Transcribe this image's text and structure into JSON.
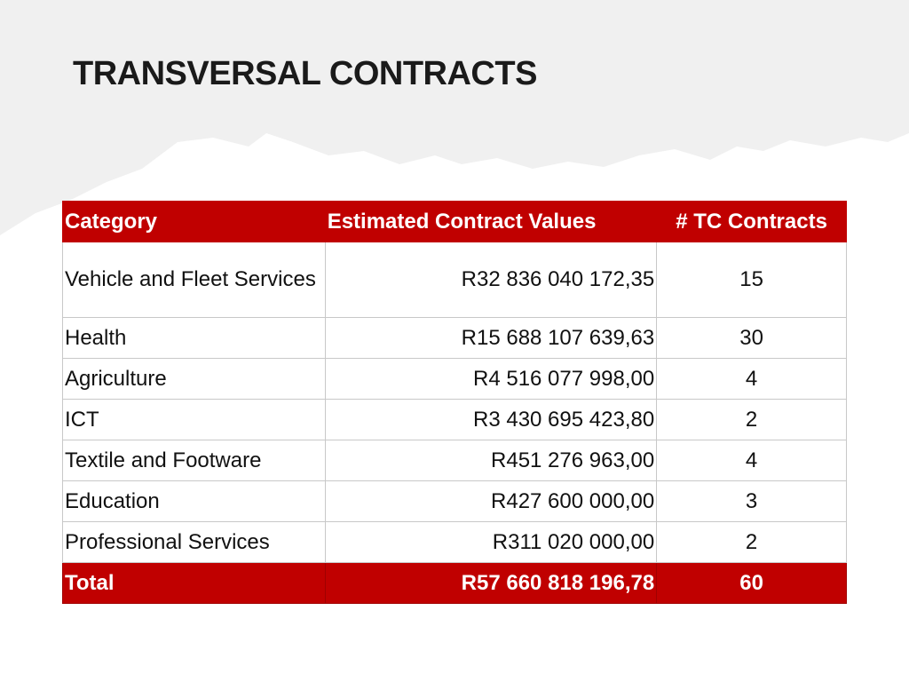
{
  "header": {
    "title": "TRANSVERSAL CONTRACTS"
  },
  "table": {
    "columns": [
      "Category",
      "Estimated Contract Values",
      "# TC Contracts"
    ],
    "rows": [
      [
        "Vehicle and Fleet Services",
        "R32 836 040 172,35",
        "15"
      ],
      [
        "Health",
        "R15 688 107 639,63",
        "30"
      ],
      [
        "Agriculture",
        "R4 516 077 998,00",
        "4"
      ],
      [
        "ICT",
        "R3 430 695 423,80",
        "2"
      ],
      [
        "Textile and Footware",
        "R451 276 963,00",
        "4"
      ],
      [
        "Education",
        "R427 600 000,00",
        "3"
      ],
      [
        "Professional Services",
        "R311 020 000,00",
        "2"
      ]
    ],
    "total": [
      "Total",
      "R57 660 818 196,78",
      "60"
    ]
  }
}
